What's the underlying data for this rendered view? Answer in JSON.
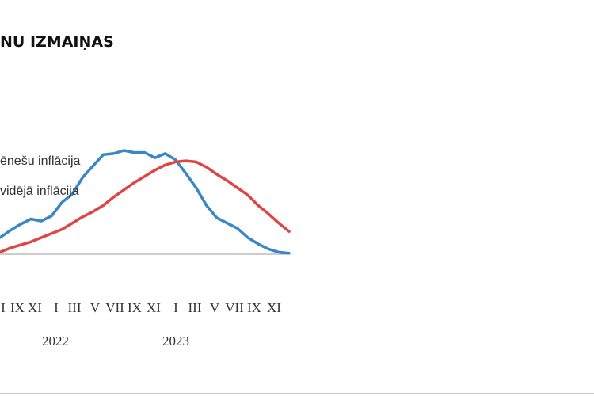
{
  "title": "NU IZMAIŅAS",
  "chart_data": {
    "type": "line",
    "title": "NU IZMAIŅAS",
    "legend": [
      "ēnešu inflācija",
      "vidējā inflācija"
    ],
    "x_ticks": [
      "I",
      "IX",
      "XI",
      "I",
      "III",
      "V",
      "VII",
      "IX",
      "XI",
      "I",
      "III",
      "V",
      "VII",
      "IX",
      "XI"
    ],
    "year_labels": [
      "2022",
      "2023"
    ],
    "ylim": [
      0,
      1
    ],
    "series": [
      {
        "name": "ēnešu inflācija",
        "color": "#3a87c8",
        "x": [
          0,
          1,
          2,
          3,
          4,
          5,
          6,
          7,
          8,
          9,
          10,
          11,
          12,
          13,
          14,
          15,
          16,
          17,
          18,
          19,
          20,
          21,
          22,
          23,
          24,
          25,
          26,
          27,
          28
        ],
        "values": [
          0.16,
          0.23,
          0.29,
          0.34,
          0.32,
          0.37,
          0.5,
          0.58,
          0.74,
          0.85,
          0.96,
          0.97,
          1.0,
          0.98,
          0.98,
          0.93,
          0.97,
          0.91,
          0.78,
          0.64,
          0.47,
          0.35,
          0.3,
          0.25,
          0.16,
          0.1,
          0.05,
          0.02,
          0.01
        ]
      },
      {
        "name": "vidējā inflācija",
        "color": "#e04545",
        "x": [
          0,
          1,
          2,
          3,
          4,
          5,
          6,
          7,
          8,
          9,
          10,
          11,
          12,
          13,
          14,
          15,
          16,
          17,
          18,
          19,
          20,
          21,
          22,
          23,
          24,
          25,
          26,
          27,
          28
        ],
        "values": [
          0.02,
          0.06,
          0.09,
          0.12,
          0.16,
          0.2,
          0.24,
          0.3,
          0.36,
          0.41,
          0.47,
          0.55,
          0.62,
          0.69,
          0.75,
          0.81,
          0.86,
          0.89,
          0.9,
          0.89,
          0.84,
          0.77,
          0.71,
          0.64,
          0.57,
          0.47,
          0.39,
          0.3,
          0.22
        ]
      }
    ]
  }
}
